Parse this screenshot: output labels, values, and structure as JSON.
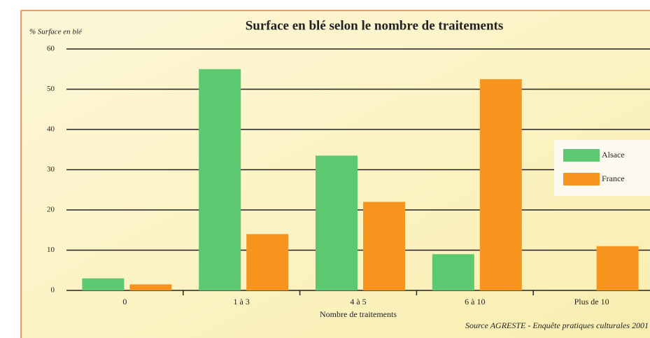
{
  "chart_data": {
    "type": "bar",
    "title": "Surface en blé selon le nombre de traitements",
    "y_label": "% Surface en blé",
    "x_label": "Nombre de traitements",
    "source": "Source AGRESTE - Enquête pratiques culturales 2001",
    "categories": [
      "0",
      "1 à 3",
      "4 à 5",
      "6 à 10",
      "Plus de 10"
    ],
    "series": [
      {
        "name": "Alsace",
        "color": "#5cc870",
        "values": [
          3,
          55,
          33.5,
          9,
          0
        ]
      },
      {
        "name": "France",
        "color": "#f7941d",
        "values": [
          1.5,
          14,
          22,
          52.5,
          11
        ]
      }
    ],
    "ylim": [
      0,
      60
    ],
    "yticks": [
      0,
      10,
      20,
      30,
      40,
      50,
      60
    ],
    "grid": true,
    "legend": "right"
  }
}
